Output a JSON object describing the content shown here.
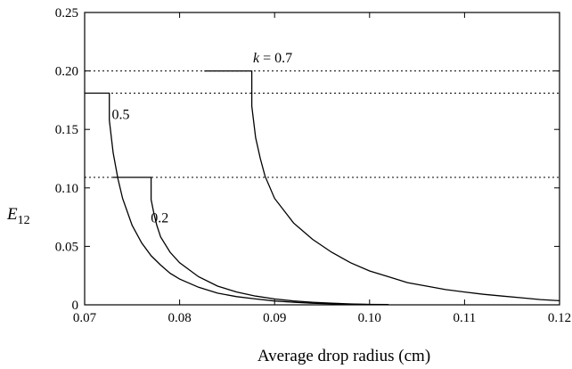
{
  "chart_data": {
    "type": "line",
    "xlabel": "Average drop radius (cm)",
    "ylabel": "E",
    "ylabel_sub": "12",
    "xlim": [
      0.07,
      0.12
    ],
    "ylim": [
      0,
      0.25
    ],
    "x_ticks": [
      0.07,
      0.08,
      0.09,
      0.1,
      0.11,
      0.12
    ],
    "x_tick_labels": [
      "0.07",
      "0.08",
      "0.09",
      "0.10",
      "0.11",
      "0.12"
    ],
    "y_ticks": [
      0,
      0.05,
      0.1,
      0.15,
      0.2,
      0.25
    ],
    "y_tick_labels": [
      "0",
      "0.05",
      "0.10",
      "0.15",
      "0.20",
      "0.25"
    ],
    "grid": false,
    "reference_lines": [
      0.2,
      0.181,
      0.109
    ],
    "series": [
      {
        "x": [
          0.0826,
          0.0876,
          0.0876,
          0.088,
          0.0885,
          0.089,
          0.09,
          0.092,
          0.094,
          0.096,
          0.098,
          0.1,
          0.102,
          0.104,
          0.106,
          0.108,
          0.11,
          0.112,
          0.114,
          0.116,
          0.118,
          0.12
        ],
        "y": [
          0.2,
          0.2,
          0.17,
          0.143,
          0.125,
          0.11,
          0.091,
          0.07,
          0.056,
          0.045,
          0.036,
          0.029,
          0.024,
          0.019,
          0.016,
          0.013,
          0.011,
          0.009,
          0.0075,
          0.006,
          0.0045,
          0.0035
        ]
      },
      {
        "x": [
          0.07,
          0.0726,
          0.0726,
          0.073,
          0.0735,
          0.074,
          0.075,
          0.076,
          0.077,
          0.078,
          0.079,
          0.08,
          0.082,
          0.084,
          0.086,
          0.088,
          0.09,
          0.092,
          0.094,
          0.096,
          0.098,
          0.1,
          0.102
        ],
        "y": [
          0.181,
          0.181,
          0.158,
          0.13,
          0.108,
          0.091,
          0.068,
          0.053,
          0.042,
          0.034,
          0.027,
          0.022,
          0.015,
          0.01,
          0.007,
          0.005,
          0.0033,
          0.0022,
          0.0014,
          0.0009,
          0.0005,
          0.0003,
          0.0001
        ]
      },
      {
        "x": [
          0.073,
          0.077,
          0.077,
          0.0773,
          0.0776,
          0.078,
          0.079,
          0.08,
          0.082,
          0.084,
          0.086,
          0.088,
          0.09,
          0.092,
          0.094,
          0.096,
          0.098,
          0.1,
          0.102
        ],
        "y": [
          0.109,
          0.109,
          0.09,
          0.078,
          0.068,
          0.058,
          0.045,
          0.036,
          0.024,
          0.016,
          0.011,
          0.0075,
          0.005,
          0.0033,
          0.0022,
          0.0014,
          0.0008,
          0.0004,
          0.0002
        ]
      }
    ],
    "annotations": [
      {
        "text": "k = 0.7",
        "italic_prefix": "k",
        "x": 0.0898,
        "y": 0.2075
      },
      {
        "text": "0.5",
        "x": 0.0738,
        "y": 0.159
      },
      {
        "text": "0.2",
        "x": 0.0779,
        "y": 0.0705
      }
    ]
  }
}
